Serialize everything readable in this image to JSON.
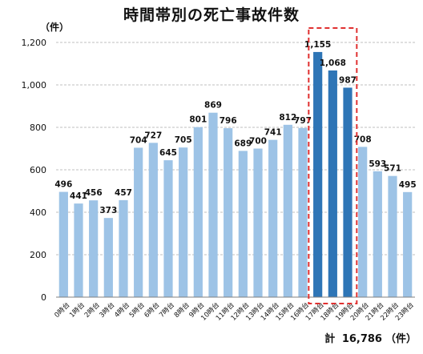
{
  "chart_data": {
    "type": "bar",
    "title": "時間帯別の死亡事故件数",
    "ylabel": "（件）",
    "ylim": [
      0,
      1200
    ],
    "yticks": [
      0,
      200,
      400,
      600,
      800,
      1000,
      1200
    ],
    "ytick_labels": [
      "0",
      "200",
      "400",
      "600",
      "800",
      "1,000",
      "1,200"
    ],
    "grid": true,
    "categories": [
      "0時台",
      "1時台",
      "2時台",
      "3時台",
      "4時台",
      "5時台",
      "6時台",
      "7時台",
      "8時台",
      "9時台",
      "10時台",
      "11時台",
      "12時台",
      "13時台",
      "14時台",
      "15時台",
      "16時台",
      "17時台",
      "18時台",
      "19時台",
      "20時台",
      "21時台",
      "22時台",
      "23時台"
    ],
    "values": [
      496,
      441,
      456,
      373,
      457,
      704,
      727,
      645,
      705,
      801,
      869,
      796,
      689,
      700,
      741,
      812,
      797,
      1155,
      1068,
      987,
      708,
      593,
      571,
      495
    ],
    "value_labels": [
      "496",
      "441",
      "456",
      "373",
      "457",
      "704",
      "727",
      "645",
      "705",
      "801",
      "869",
      "796",
      "689",
      "700",
      "741",
      "812",
      "797",
      "1,155",
      "1,068",
      "987",
      "708",
      "593",
      "571",
      "495"
    ],
    "highlighted_categories": [
      "17時台",
      "18時台",
      "19時台"
    ],
    "colors": {
      "bar": "#9dc3e6",
      "highlight": "#2e75b6",
      "box": "#e03030"
    }
  },
  "total": {
    "label": "計",
    "value": "16,786",
    "unit": "（件）"
  }
}
